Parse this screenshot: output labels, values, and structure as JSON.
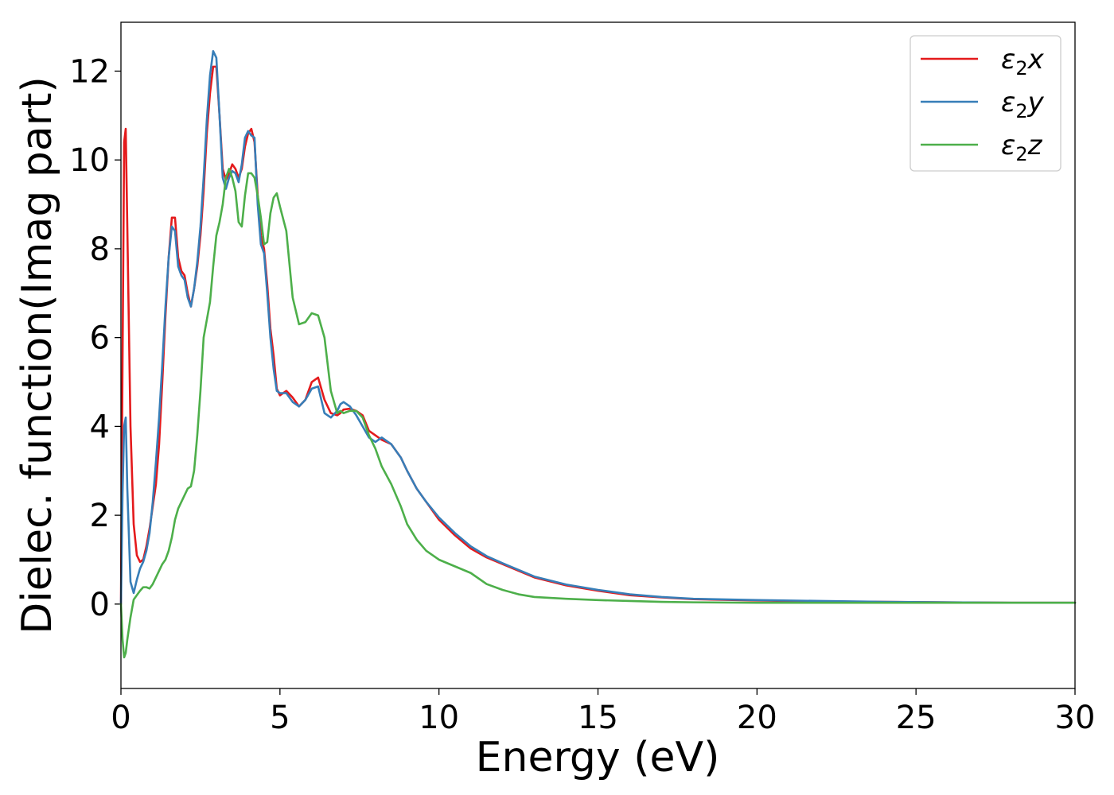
{
  "chart_data": {
    "type": "line",
    "xlabel": "Energy (eV)",
    "ylabel": "Dielec. function(Imag part)",
    "xlim": [
      0,
      30
    ],
    "ylim": [
      -1.9,
      13.1
    ],
    "xticks": [
      0,
      5,
      10,
      15,
      20,
      25,
      30
    ],
    "yticks": [
      0,
      2,
      4,
      6,
      8,
      10,
      12
    ],
    "grid": false,
    "legend_position": "top-right",
    "series": [
      {
        "name": "ε₂x",
        "legend": {
          "base": "ε",
          "sub": "2",
          "tail": "x"
        },
        "color": "#e41a1c",
        "x": [
          0.0,
          0.05,
          0.1,
          0.15,
          0.2,
          0.3,
          0.4,
          0.5,
          0.6,
          0.7,
          0.8,
          0.9,
          1.0,
          1.1,
          1.2,
          1.3,
          1.4,
          1.5,
          1.6,
          1.7,
          1.8,
          1.9,
          2.0,
          2.1,
          2.2,
          2.3,
          2.4,
          2.5,
          2.6,
          2.7,
          2.8,
          2.9,
          3.0,
          3.1,
          3.2,
          3.3,
          3.4,
          3.5,
          3.6,
          3.7,
          3.8,
          3.9,
          4.0,
          4.1,
          4.2,
          4.3,
          4.4,
          4.5,
          4.6,
          4.7,
          4.8,
          4.9,
          5.0,
          5.2,
          5.4,
          5.6,
          5.8,
          6.0,
          6.2,
          6.4,
          6.6,
          6.8,
          6.9,
          7.0,
          7.2,
          7.4,
          7.6,
          7.8,
          8.0,
          8.2,
          8.5,
          8.8,
          9.0,
          9.3,
          9.6,
          10.0,
          10.5,
          11.0,
          11.5,
          12.0,
          12.5,
          13.0,
          14.0,
          15.0,
          16.0,
          17.0,
          18.0,
          20.0,
          22.0,
          24.0,
          26.0,
          28.0,
          30.0
        ],
        "y": [
          0.0,
          5.5,
          10.4,
          10.7,
          8.5,
          4.0,
          1.8,
          1.1,
          0.95,
          1.0,
          1.3,
          1.7,
          2.2,
          2.7,
          3.6,
          5.0,
          6.5,
          7.8,
          8.7,
          8.7,
          7.8,
          7.5,
          7.4,
          7.0,
          6.7,
          7.1,
          7.6,
          8.3,
          9.3,
          10.6,
          11.5,
          12.1,
          12.1,
          11.0,
          9.8,
          9.55,
          9.7,
          9.9,
          9.8,
          9.6,
          9.8,
          10.3,
          10.6,
          10.7,
          10.4,
          9.2,
          8.3,
          8.0,
          7.2,
          6.2,
          5.6,
          4.85,
          4.7,
          4.8,
          4.65,
          4.45,
          4.6,
          5.0,
          5.1,
          4.6,
          4.3,
          4.25,
          4.3,
          4.38,
          4.4,
          4.35,
          4.25,
          3.9,
          3.8,
          3.7,
          3.6,
          3.3,
          3.0,
          2.6,
          2.3,
          1.9,
          1.55,
          1.25,
          1.05,
          0.9,
          0.75,
          0.6,
          0.42,
          0.3,
          0.2,
          0.15,
          0.11,
          0.08,
          0.06,
          0.05,
          0.04,
          0.03,
          0.03
        ]
      },
      {
        "name": "ε₂y",
        "legend": {
          "base": "ε",
          "sub": "2",
          "tail": "y"
        },
        "color": "#377eb8",
        "x": [
          0.0,
          0.05,
          0.1,
          0.15,
          0.2,
          0.3,
          0.4,
          0.5,
          0.6,
          0.7,
          0.8,
          0.9,
          1.0,
          1.1,
          1.2,
          1.3,
          1.4,
          1.5,
          1.6,
          1.7,
          1.8,
          1.9,
          2.0,
          2.1,
          2.2,
          2.3,
          2.4,
          2.5,
          2.6,
          2.7,
          2.8,
          2.9,
          3.0,
          3.1,
          3.2,
          3.3,
          3.4,
          3.5,
          3.6,
          3.7,
          3.8,
          3.9,
          4.0,
          4.1,
          4.2,
          4.3,
          4.4,
          4.5,
          4.6,
          4.7,
          4.8,
          4.9,
          5.0,
          5.2,
          5.4,
          5.6,
          5.8,
          6.0,
          6.2,
          6.4,
          6.6,
          6.8,
          6.9,
          7.0,
          7.2,
          7.4,
          7.6,
          7.8,
          8.0,
          8.2,
          8.5,
          8.8,
          9.0,
          9.3,
          9.6,
          10.0,
          10.5,
          11.0,
          11.5,
          12.0,
          12.5,
          13.0,
          14.0,
          15.0,
          16.0,
          17.0,
          18.0,
          20.0,
          22.0,
          24.0,
          26.0,
          28.0,
          30.0
        ],
        "y": [
          0.0,
          2.5,
          4.0,
          4.2,
          2.6,
          0.5,
          0.25,
          0.55,
          0.8,
          0.95,
          1.2,
          1.6,
          2.3,
          3.2,
          4.2,
          5.4,
          6.7,
          7.8,
          8.5,
          8.4,
          7.6,
          7.4,
          7.3,
          6.9,
          6.7,
          7.1,
          7.7,
          8.5,
          9.6,
          10.9,
          11.9,
          12.45,
          12.3,
          11.0,
          9.6,
          9.35,
          9.6,
          9.75,
          9.7,
          9.5,
          9.9,
          10.5,
          10.65,
          10.55,
          10.5,
          9.0,
          8.1,
          7.9,
          7.0,
          6.0,
          5.3,
          4.8,
          4.75,
          4.75,
          4.55,
          4.45,
          4.6,
          4.85,
          4.9,
          4.3,
          4.2,
          4.35,
          4.5,
          4.55,
          4.45,
          4.25,
          4.0,
          3.75,
          3.65,
          3.75,
          3.6,
          3.3,
          3.0,
          2.6,
          2.3,
          1.95,
          1.6,
          1.3,
          1.08,
          0.92,
          0.77,
          0.62,
          0.44,
          0.32,
          0.22,
          0.16,
          0.12,
          0.09,
          0.07,
          0.05,
          0.04,
          0.03,
          0.03
        ]
      },
      {
        "name": "ε₂z",
        "legend": {
          "base": "ε",
          "sub": "2",
          "tail": "z"
        },
        "color": "#4daf4a",
        "x": [
          0.0,
          0.05,
          0.1,
          0.15,
          0.2,
          0.3,
          0.4,
          0.5,
          0.6,
          0.7,
          0.8,
          0.9,
          1.0,
          1.1,
          1.2,
          1.3,
          1.4,
          1.5,
          1.6,
          1.7,
          1.8,
          1.9,
          2.0,
          2.1,
          2.2,
          2.3,
          2.4,
          2.5,
          2.6,
          2.7,
          2.8,
          2.9,
          3.0,
          3.1,
          3.2,
          3.3,
          3.4,
          3.5,
          3.6,
          3.7,
          3.8,
          3.9,
          4.0,
          4.1,
          4.2,
          4.3,
          4.4,
          4.5,
          4.6,
          4.7,
          4.8,
          4.9,
          5.0,
          5.2,
          5.4,
          5.6,
          5.8,
          6.0,
          6.2,
          6.4,
          6.6,
          6.8,
          6.9,
          7.0,
          7.2,
          7.4,
          7.6,
          7.8,
          8.0,
          8.2,
          8.5,
          8.8,
          9.0,
          9.3,
          9.6,
          10.0,
          10.5,
          11.0,
          11.5,
          12.0,
          12.5,
          13.0,
          14.0,
          15.0,
          16.0,
          17.0,
          18.0,
          20.0,
          22.0,
          24.0,
          26.0,
          28.0,
          30.0
        ],
        "y": [
          0.0,
          -0.8,
          -1.2,
          -1.1,
          -0.8,
          -0.3,
          0.1,
          0.2,
          0.3,
          0.38,
          0.38,
          0.35,
          0.45,
          0.6,
          0.75,
          0.9,
          1.0,
          1.2,
          1.5,
          1.9,
          2.15,
          2.3,
          2.45,
          2.6,
          2.65,
          3.0,
          3.8,
          4.8,
          6.0,
          6.4,
          6.8,
          7.6,
          8.3,
          8.6,
          9.0,
          9.6,
          9.8,
          9.6,
          9.3,
          8.6,
          8.5,
          9.2,
          9.7,
          9.7,
          9.6,
          9.2,
          8.7,
          8.1,
          8.15,
          8.8,
          9.15,
          9.25,
          8.95,
          8.4,
          6.9,
          6.3,
          6.35,
          6.55,
          6.5,
          6.0,
          4.8,
          4.3,
          4.35,
          4.3,
          4.35,
          4.35,
          4.2,
          3.8,
          3.5,
          3.1,
          2.7,
          2.2,
          1.8,
          1.45,
          1.2,
          1.0,
          0.85,
          0.7,
          0.45,
          0.32,
          0.22,
          0.16,
          0.12,
          0.09,
          0.07,
          0.05,
          0.04,
          0.03,
          0.03,
          0.03,
          0.03,
          0.03,
          0.03
        ]
      }
    ]
  }
}
